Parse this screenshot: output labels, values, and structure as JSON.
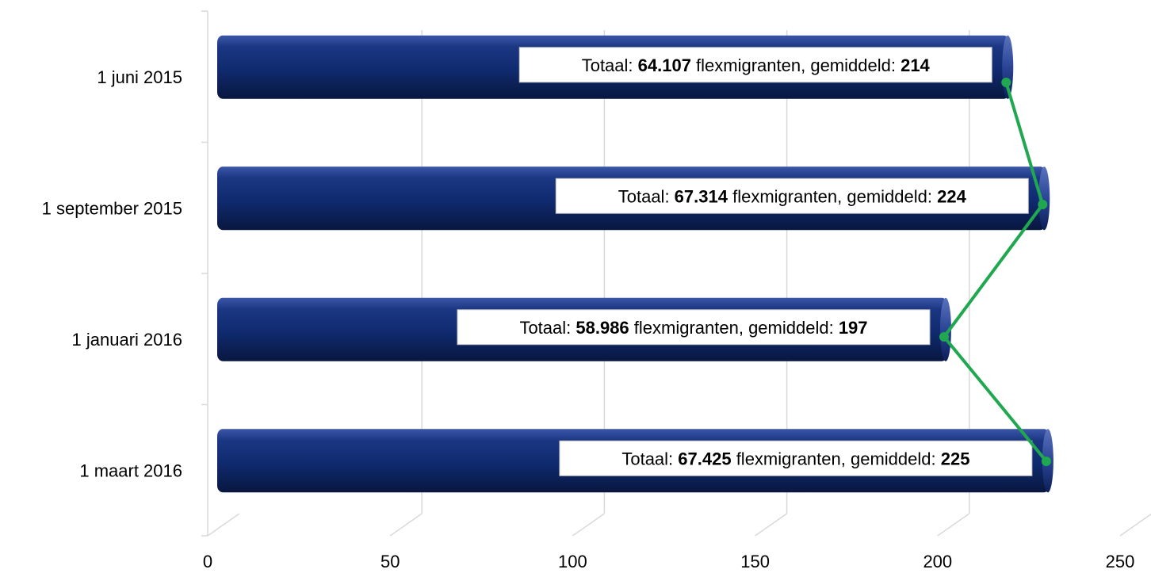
{
  "chart_data": {
    "type": "bar",
    "orientation": "horizontal",
    "categories": [
      "1 juni 2015",
      "1 september 2015",
      "1 januari 2016",
      "1 maart 2016"
    ],
    "values": [
      214,
      224,
      197,
      225
    ],
    "totals": [
      "64.107",
      "67.314",
      "58.986",
      "67.425"
    ],
    "label_prefix": "Totaal:",
    "label_middle": "flexmigranten, gemiddeld:",
    "xlim": [
      0,
      250
    ],
    "xticks": [
      "0",
      "50",
      "100",
      "150",
      "200",
      "250"
    ],
    "grid": true,
    "legend": "none",
    "bar_color": "#0f2a6e",
    "line_color": "#1fa84f"
  }
}
